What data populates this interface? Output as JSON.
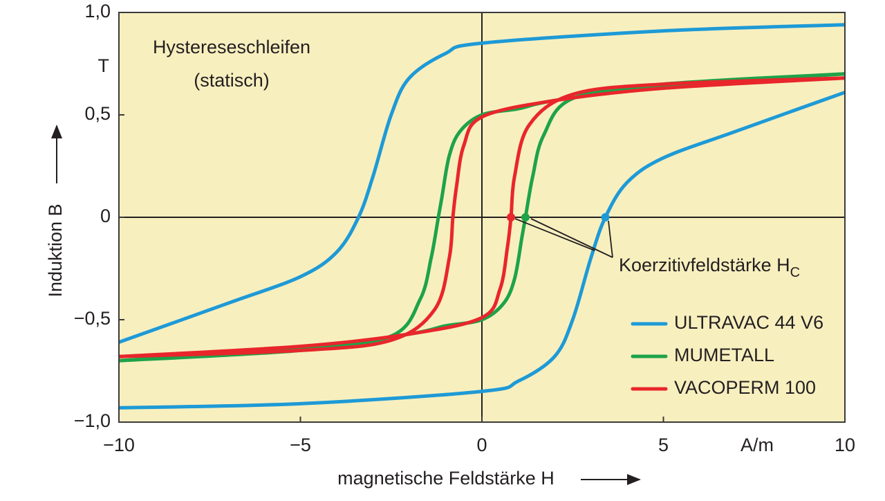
{
  "chart_data": {
    "type": "line",
    "title": "Hystereseschleifen",
    "subtitle": "(statisch)",
    "x_label": "magnetische Feldstärke H",
    "x_unit": "A/m",
    "y_label": "Induktion B",
    "y_unit": "T",
    "xlim": [
      -10,
      10
    ],
    "ylim": [
      -1,
      1
    ],
    "xticks": [
      {
        "value": -10,
        "label": "−10"
      },
      {
        "value": -5,
        "label": "−5"
      },
      0,
      5,
      10
    ],
    "yticks": [
      {
        "value": -1,
        "label": "−1,0"
      },
      {
        "value": -0.5,
        "label": "−0,5"
      },
      0,
      {
        "value": 0.5,
        "label": "0,5"
      },
      {
        "value": 1,
        "label": "1,0"
      }
    ],
    "annotation": {
      "text": "Koerzitivfeldstärke H",
      "subscript": "C"
    },
    "series": [
      {
        "name": "ULTRAVAC 44 V6",
        "color": "#1e9ad6",
        "coercivity_point": {
          "x": 3.4,
          "y": 0
        },
        "branches": [
          {
            "x": [
              -10,
              -5,
              0,
              1,
              2,
              2.5,
              3,
              3.4,
              4,
              5,
              7,
              10
            ],
            "values": [
              -0.93,
              -0.91,
              -0.85,
              -0.8,
              -0.68,
              -0.5,
              -0.2,
              0,
              0.17,
              0.29,
              0.42,
              0.61
            ]
          },
          {
            "x": [
              10,
              5,
              0,
              -1,
              -2,
              -2.5,
              -3,
              -3.4,
              -4,
              -5,
              -7,
              -10
            ],
            "values": [
              0.94,
              0.91,
              0.85,
              0.8,
              0.68,
              0.5,
              0.2,
              0,
              -0.17,
              -0.29,
              -0.42,
              -0.61
            ]
          }
        ]
      },
      {
        "name": "MUMETALL",
        "color": "#1ea34a",
        "coercivity_point": {
          "x": 1.2,
          "y": 0
        },
        "branches": [
          {
            "x": [
              -10,
              -5,
              -2,
              -1,
              0,
              0.6,
              0.9,
              1.1,
              1.2,
              1.4,
              1.7,
              2.5,
              5,
              10
            ],
            "values": [
              -0.7,
              -0.64,
              -0.57,
              -0.53,
              -0.5,
              -0.42,
              -0.3,
              -0.1,
              0,
              0.2,
              0.4,
              0.58,
              0.65,
              0.7
            ]
          },
          {
            "x": [
              10,
              5,
              2,
              1,
              0,
              -0.6,
              -0.9,
              -1.1,
              -1.2,
              -1.4,
              -1.7,
              -2.5,
              -5,
              -10
            ],
            "values": [
              0.7,
              0.64,
              0.57,
              0.53,
              0.5,
              0.42,
              0.3,
              0.1,
              0,
              -0.2,
              -0.4,
              -0.58,
              -0.65,
              -0.7
            ]
          }
        ]
      },
      {
        "name": "VACOPERM 100",
        "color": "#e8262b",
        "coercivity_point": {
          "x": 0.8,
          "y": 0
        },
        "branches": [
          {
            "x": [
              -10,
              -5,
              -2,
              0,
              0.5,
              0.7,
              0.8,
              0.9,
              1.3,
              2.5,
              5,
              10
            ],
            "values": [
              -0.68,
              -0.63,
              -0.57,
              -0.49,
              -0.35,
              -0.15,
              0,
              0.2,
              0.45,
              0.6,
              0.65,
              0.68
            ]
          },
          {
            "x": [
              10,
              5,
              2,
              0,
              -0.5,
              -0.7,
              -0.8,
              -0.9,
              -1.3,
              -2.5,
              -5,
              -10
            ],
            "values": [
              0.68,
              0.63,
              0.57,
              0.49,
              0.35,
              0.15,
              0,
              -0.2,
              -0.45,
              -0.6,
              -0.65,
              -0.68
            ]
          }
        ]
      }
    ]
  }
}
